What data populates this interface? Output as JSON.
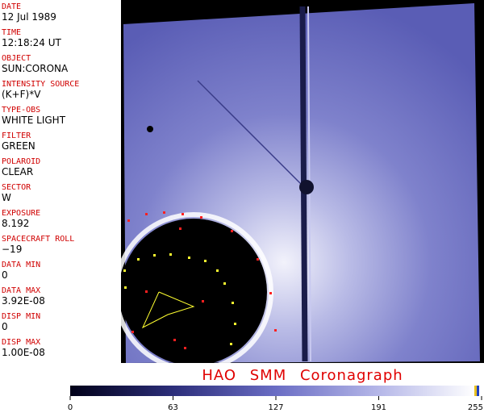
{
  "fields": [
    {
      "label": "DATE",
      "value": "12 Jul 1989"
    },
    {
      "label": "TIME",
      "value": "12:18:24 UT"
    },
    {
      "label": "OBJECT",
      "value": "SUN:CORONA"
    },
    {
      "label": "INTENSITY SOURCE",
      "value": "(K+F)*V"
    },
    {
      "label": "TYPE-OBS",
      "value": "WHITE LIGHT"
    },
    {
      "label": "FILTER",
      "value": "GREEN"
    },
    {
      "label": "POLAROID",
      "value": "CLEAR"
    },
    {
      "label": "SECTOR",
      "value": "W"
    },
    {
      "label": "EXPOSURE",
      "value": "8.192"
    },
    {
      "label": "SPACECRAFT ROLL",
      "value": "−19"
    },
    {
      "label": "DATA MIN",
      "value": "0"
    },
    {
      "label": "DATA MAX",
      "value": "3.92E-08"
    },
    {
      "label": "DISP MIN",
      "value": "0"
    },
    {
      "label": "DISP MAX",
      "value": "1.00E-08"
    }
  ],
  "title": "HAO  SMM Coronagraph",
  "colorbar": {
    "ticks": [
      0,
      63,
      127,
      191,
      255
    ]
  }
}
